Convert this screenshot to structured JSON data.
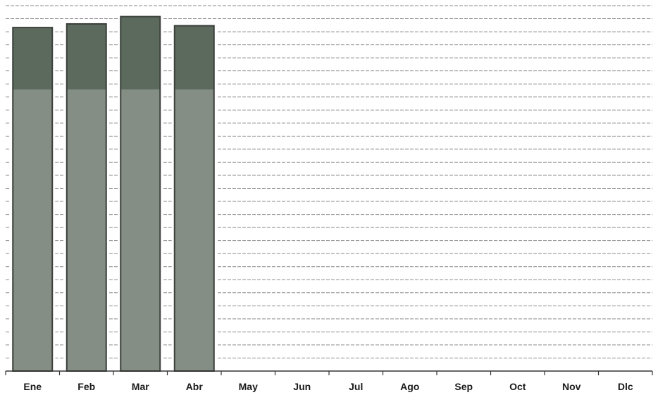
{
  "chart_data": {
    "type": "bar",
    "categories": [
      "Ene",
      "Feb",
      "Mar",
      "Abr",
      "May",
      "Jun",
      "Jul",
      "Ago",
      "Sep",
      "Oct",
      "Nov",
      "Dlc"
    ],
    "series": [
      {
        "values": [
          94,
          95,
          97,
          94.5,
          null,
          null,
          null,
          null,
          null,
          null,
          null,
          null
        ]
      }
    ],
    "ylim": [
      0,
      100
    ],
    "grid": "horizontal dashed lines",
    "bar_colors": {
      "upper_band": "#5c6a5d",
      "lower_band": "#858e85",
      "outline": "#3a3f3a"
    }
  }
}
